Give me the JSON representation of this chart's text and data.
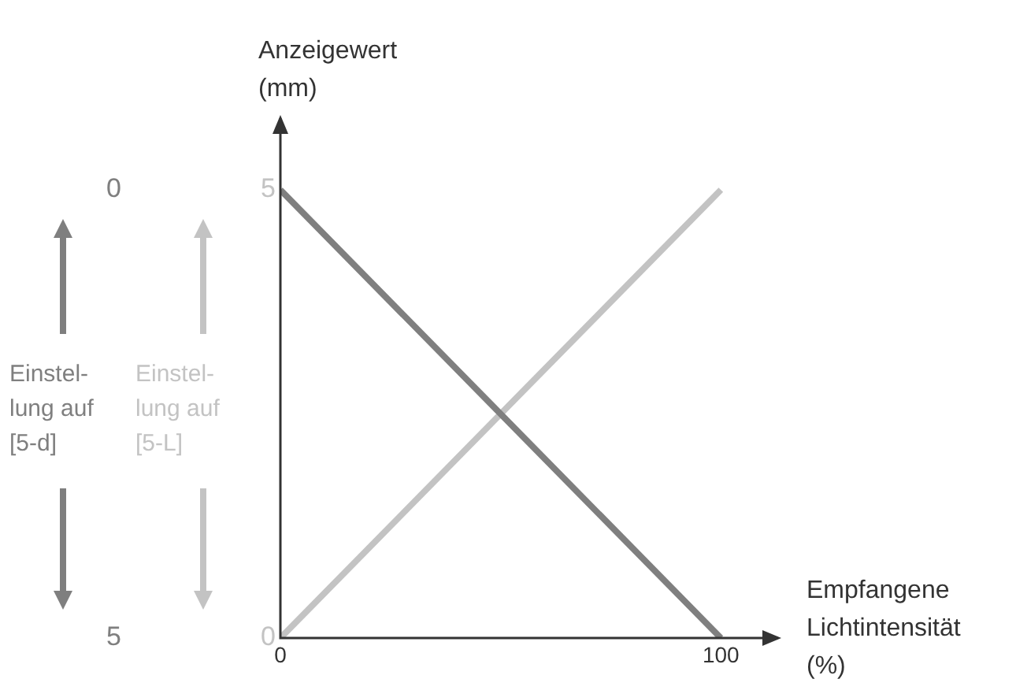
{
  "chart_data": {
    "type": "line",
    "xlabel": "Empfangene\nLichtintensität\n(%)",
    "ylabel": "Anzeigewert\n(mm)",
    "xlim": [
      0,
      113
    ],
    "xticks": [
      0,
      100
    ],
    "ylim": [
      0,
      5.8
    ],
    "yticks": [
      0,
      5
    ],
    "y2lim": [
      5,
      -0.8
    ],
    "y2ticks": [
      0,
      5
    ],
    "x": [
      0,
      100
    ],
    "series": [
      {
        "color": "#7f7f7f",
        "axis": "y2",
        "values": [
          0,
          5
        ]
      },
      {
        "color": "#c3c3c3",
        "values": [
          0,
          5
        ]
      }
    ],
    "annotations": [
      "Einstel-\nlung auf\n[5-d]",
      "Einstel-\nlung auf\n[5-L]"
    ],
    "grid": false,
    "legend": false,
    "marker": "none",
    "line_style": "solid"
  }
}
